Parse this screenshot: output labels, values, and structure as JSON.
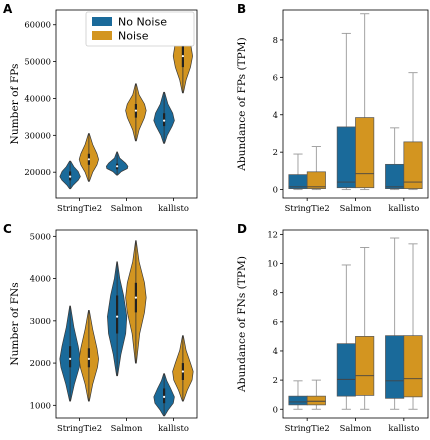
{
  "colors": {
    "no_noise": "#1a6a9a",
    "noise": "#d39520",
    "whisker": "#999999",
    "median": "#444444"
  },
  "legend": {
    "no_noise": "No Noise",
    "noise": "Noise"
  },
  "chart_data": [
    {
      "panel": "A",
      "type": "violin",
      "ylabel": "Number of FPs",
      "categories": [
        "StringTie2",
        "Salmon",
        "kallisto"
      ],
      "ylim": [
        13000,
        64000
      ],
      "yticks": [
        20000,
        30000,
        40000,
        50000,
        60000
      ],
      "legend": "top-left",
      "series": [
        {
          "name": "No Noise",
          "distributions": [
            {
              "min": 15500,
              "q1": 17800,
              "median": 18800,
              "q3": 20200,
              "max": 23000,
              "profile": [
                [
                  15500,
                  0.05
                ],
                [
                  16500,
                  0.3
                ],
                [
                  17800,
                  0.75
                ],
                [
                  18800,
                  0.95
                ],
                [
                  20200,
                  0.75
                ],
                [
                  21500,
                  0.35
                ],
                [
                  23000,
                  0.05
                ]
              ]
            },
            {
              "min": 19200,
              "q1": 20800,
              "median": 21600,
              "q3": 22300,
              "max": 25500,
              "profile": [
                [
                  19200,
                  0.05
                ],
                [
                  20200,
                  0.4
                ],
                [
                  21000,
                  0.95
                ],
                [
                  21600,
                  1.0
                ],
                [
                  22400,
                  0.8
                ],
                [
                  23800,
                  0.25
                ],
                [
                  25500,
                  0.03
                ]
              ]
            },
            {
              "min": 27800,
              "q1": 32500,
              "median": 34000,
              "q3": 36000,
              "max": 41700,
              "profile": [
                [
                  27800,
                  0.05
                ],
                [
                  30000,
                  0.3
                ],
                [
                  32500,
                  0.75
                ],
                [
                  34000,
                  0.95
                ],
                [
                  36000,
                  0.8
                ],
                [
                  38500,
                  0.35
                ],
                [
                  41700,
                  0.05
                ]
              ]
            }
          ]
        },
        {
          "name": "Noise",
          "distributions": [
            {
              "min": 17500,
              "q1": 22000,
              "median": 23500,
              "q3": 25000,
              "max": 30500,
              "profile": [
                [
                  17500,
                  0.05
                ],
                [
                  20000,
                  0.35
                ],
                [
                  22000,
                  0.75
                ],
                [
                  23500,
                  0.9
                ],
                [
                  25000,
                  0.75
                ],
                [
                  27500,
                  0.35
                ],
                [
                  30500,
                  0.04
                ]
              ]
            },
            {
              "min": 28500,
              "q1": 34800,
              "median": 36700,
              "q3": 38500,
              "max": 44000,
              "profile": [
                [
                  28500,
                  0.05
                ],
                [
                  31500,
                  0.3
                ],
                [
                  34800,
                  0.8
                ],
                [
                  36700,
                  0.95
                ],
                [
                  38500,
                  0.8
                ],
                [
                  41000,
                  0.3
                ],
                [
                  44000,
                  0.04
                ]
              ]
            },
            {
              "min": 41500,
              "q1": 48500,
              "median": 51500,
              "q3": 55000,
              "max": 62500,
              "profile": [
                [
                  41500,
                  0.05
                ],
                [
                  45000,
                  0.3
                ],
                [
                  48500,
                  0.7
                ],
                [
                  51500,
                  0.9
                ],
                [
                  55000,
                  0.7
                ],
                [
                  58500,
                  0.3
                ],
                [
                  62500,
                  0.03
                ]
              ]
            }
          ]
        }
      ]
    },
    {
      "panel": "B",
      "type": "box",
      "ylabel": "Abundance of FPs (TPM)",
      "categories": [
        "StringTie2",
        "Salmon",
        "kallisto"
      ],
      "ylim": [
        -0.45,
        9.6
      ],
      "yticks": [
        0,
        2,
        4,
        6,
        8
      ],
      "series": [
        {
          "name": "No Noise",
          "boxes": [
            {
              "min": 0.0,
              "q1": 0.05,
              "median": 0.15,
              "q3": 0.8,
              "max": 1.9
            },
            {
              "min": 0.0,
              "q1": 0.1,
              "median": 0.4,
              "q3": 3.35,
              "max": 8.35
            },
            {
              "min": 0.0,
              "q1": 0.05,
              "median": 0.15,
              "q3": 1.35,
              "max": 3.3
            }
          ]
        },
        {
          "name": "Noise",
          "boxes": [
            {
              "min": 0.0,
              "q1": 0.05,
              "median": 0.15,
              "q3": 0.95,
              "max": 2.3
            },
            {
              "min": 0.0,
              "q1": 0.1,
              "median": 0.85,
              "q3": 3.85,
              "max": 9.4
            },
            {
              "min": 0.0,
              "q1": 0.05,
              "median": 0.4,
              "q3": 2.55,
              "max": 6.25
            }
          ]
        }
      ]
    },
    {
      "panel": "C",
      "type": "violin",
      "ylabel": "Number of FNs",
      "categories": [
        "StringTie2",
        "Salmon",
        "kallisto"
      ],
      "ylim": [
        700,
        5150
      ],
      "yticks": [
        1000,
        2000,
        3000,
        4000,
        5000
      ],
      "series": [
        {
          "name": "No Noise",
          "distributions": [
            {
              "min": 1100,
              "q1": 1900,
              "median": 2100,
              "q3": 2400,
              "max": 3350,
              "profile": [
                [
                  1100,
                  0.05
                ],
                [
                  1500,
                  0.4
                ],
                [
                  1900,
                  0.85
                ],
                [
                  2100,
                  0.95
                ],
                [
                  2400,
                  0.75
                ],
                [
                  2850,
                  0.35
                ],
                [
                  3350,
                  0.04
                ]
              ]
            },
            {
              "min": 1700,
              "q1": 2700,
              "median": 3100,
              "q3": 3600,
              "max": 4400,
              "profile": [
                [
                  1700,
                  0.05
                ],
                [
                  2200,
                  0.35
                ],
                [
                  2700,
                  0.8
                ],
                [
                  3100,
                  0.9
                ],
                [
                  3600,
                  0.6
                ],
                [
                  4000,
                  0.25
                ],
                [
                  4400,
                  0.03
                ]
              ]
            },
            {
              "min": 750,
              "q1": 1050,
              "median": 1200,
              "q3": 1400,
              "max": 1750,
              "profile": [
                [
                  750,
                  0.05
                ],
                [
                  900,
                  0.4
                ],
                [
                  1050,
                  0.85
                ],
                [
                  1200,
                  0.95
                ],
                [
                  1400,
                  0.6
                ],
                [
                  1580,
                  0.25
                ],
                [
                  1750,
                  0.04
                ]
              ]
            }
          ]
        },
        {
          "name": "Noise",
          "distributions": [
            {
              "min": 1100,
              "q1": 1900,
              "median": 2100,
              "q3": 2350,
              "max": 3250,
              "profile": [
                [
                  1100,
                  0.05
                ],
                [
                  1500,
                  0.35
                ],
                [
                  1900,
                  0.8
                ],
                [
                  2100,
                  0.9
                ],
                [
                  2350,
                  0.75
                ],
                [
                  2800,
                  0.35
                ],
                [
                  3250,
                  0.04
                ]
              ]
            },
            {
              "min": 2000,
              "q1": 3200,
              "median": 3550,
              "q3": 3900,
              "max": 4900,
              "profile": [
                [
                  2000,
                  0.05
                ],
                [
                  2700,
                  0.35
                ],
                [
                  3200,
                  0.8
                ],
                [
                  3550,
                  0.95
                ],
                [
                  3900,
                  0.8
                ],
                [
                  4400,
                  0.3
                ],
                [
                  4900,
                  0.03
                ]
              ]
            },
            {
              "min": 1100,
              "q1": 1600,
              "median": 1800,
              "q3": 2000,
              "max": 2650,
              "profile": [
                [
                  1100,
                  0.05
                ],
                [
                  1350,
                  0.4
                ],
                [
                  1600,
                  0.85
                ],
                [
                  1800,
                  0.95
                ],
                [
                  2000,
                  0.7
                ],
                [
                  2300,
                  0.3
                ],
                [
                  2650,
                  0.04
                ]
              ]
            }
          ]
        }
      ]
    },
    {
      "panel": "D",
      "type": "box",
      "ylabel": "Abundance of FNs (TPM)",
      "categories": [
        "StringTie2",
        "Salmon",
        "kallisto"
      ],
      "ylim": [
        -0.6,
        12.3
      ],
      "yticks": [
        0,
        2,
        4,
        6,
        8,
        10,
        12
      ],
      "series": [
        {
          "name": "No Noise",
          "boxes": [
            {
              "min": 0.0,
              "q1": 0.3,
              "median": 0.5,
              "q3": 0.9,
              "max": 1.95
            },
            {
              "min": 0.0,
              "q1": 0.9,
              "median": 2.05,
              "q3": 4.5,
              "max": 9.9
            },
            {
              "min": 0.0,
              "q1": 0.75,
              "median": 1.95,
              "q3": 5.05,
              "max": 11.75
            }
          ]
        },
        {
          "name": "Noise",
          "boxes": [
            {
              "min": 0.0,
              "q1": 0.3,
              "median": 0.55,
              "q3": 0.9,
              "max": 2.0
            },
            {
              "min": 0.0,
              "q1": 0.95,
              "median": 2.3,
              "q3": 5.0,
              "max": 11.1
            },
            {
              "min": 0.0,
              "q1": 0.85,
              "median": 2.1,
              "q3": 5.05,
              "max": 11.35
            }
          ]
        }
      ]
    }
  ]
}
